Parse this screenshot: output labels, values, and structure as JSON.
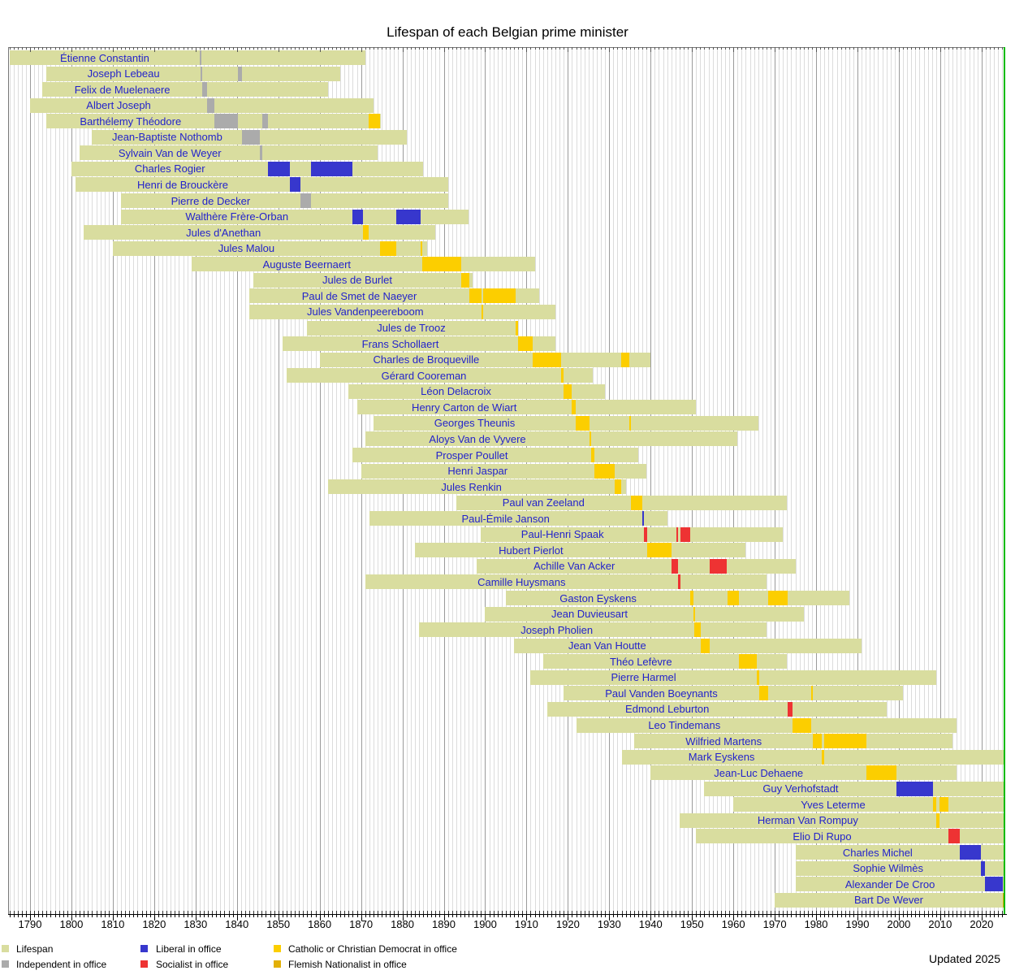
{
  "chart_data": {
    "type": "timeline",
    "title": "Lifespan of each Belgian prime minister",
    "updated": "Updated 2025",
    "x_axis": {
      "start_year": 1790,
      "end_year": 2020,
      "major_interval": 10,
      "minor_interval": 1
    },
    "x_ticks": [
      1790,
      1800,
      1810,
      1820,
      1830,
      1840,
      1850,
      1860,
      1870,
      1880,
      1890,
      1900,
      1910,
      1920,
      1930,
      1940,
      1950,
      1960,
      1970,
      1980,
      1990,
      2000,
      2010,
      2020
    ],
    "now_year": 2025.35,
    "colors": {
      "lifespan": "#d9dd9f",
      "independent": "#ababab",
      "liberal": "#3737cd",
      "socialist": "#ee3333",
      "catholic": "#fcce00",
      "flemish": "#e2b007",
      "now_line": "#00bb00",
      "grid_minor": "#dcdcdc",
      "grid_major": "#9a9a9a",
      "frame": "#777777",
      "name_text": "#2323cb"
    },
    "legend": [
      {
        "key": "lifespan",
        "label": "Lifespan"
      },
      {
        "key": "independent",
        "label": "Independent in office"
      },
      {
        "key": "liberal",
        "label": "Liberal in office"
      },
      {
        "key": "socialist",
        "label": "Socialist in office"
      },
      {
        "key": "catholic",
        "label": "Catholic or Christian Democrat in office"
      },
      {
        "key": "flemish",
        "label": "Flemish Nationalist in office"
      }
    ],
    "ministers": [
      {
        "name": "Étienne Constantin",
        "born": 1785,
        "died": 1871,
        "terms": [
          {
            "start": 1831.1,
            "end": 1831.5,
            "party": "independent"
          }
        ]
      },
      {
        "name": "Joseph Lebeau",
        "born": 1794,
        "died": 1865,
        "terms": [
          {
            "start": 1831.2,
            "end": 1831.6,
            "party": "independent"
          },
          {
            "start": 1840.3,
            "end": 1841.3,
            "party": "independent"
          }
        ]
      },
      {
        "name": "Felix de Muelenaere",
        "born": 1793,
        "died": 1862,
        "terms": [
          {
            "start": 1831.6,
            "end": 1832.8,
            "party": "independent"
          }
        ]
      },
      {
        "name": "Albert Joseph",
        "born": 1790,
        "died": 1873,
        "terms": [
          {
            "start": 1832.8,
            "end": 1834.6,
            "party": "independent"
          }
        ]
      },
      {
        "name": "Barthélemy Théodore",
        "born": 1794,
        "died": 1874.7,
        "terms": [
          {
            "start": 1834.6,
            "end": 1840.3,
            "party": "independent"
          },
          {
            "start": 1846.2,
            "end": 1847.6,
            "party": "independent"
          },
          {
            "start": 1871.9,
            "end": 1874.6,
            "party": "catholic"
          }
        ]
      },
      {
        "name": "Jean-Baptiste Nothomb",
        "born": 1805,
        "died": 1881,
        "terms": [
          {
            "start": 1841.3,
            "end": 1845.6,
            "party": "independent"
          }
        ]
      },
      {
        "name": "Sylvain Van de Weyer",
        "born": 1802,
        "died": 1874,
        "terms": [
          {
            "start": 1845.6,
            "end": 1846.2,
            "party": "independent"
          }
        ]
      },
      {
        "name": "Charles Rogier",
        "born": 1800,
        "died": 1885,
        "terms": [
          {
            "start": 1847.6,
            "end": 1852.8,
            "party": "liberal"
          },
          {
            "start": 1857.9,
            "end": 1868.0,
            "party": "liberal"
          }
        ]
      },
      {
        "name": "Henri de Brouckère",
        "born": 1801,
        "died": 1891,
        "terms": [
          {
            "start": 1852.8,
            "end": 1855.3,
            "party": "liberal"
          }
        ]
      },
      {
        "name": "Pierre de Decker",
        "born": 1812,
        "died": 1891,
        "terms": [
          {
            "start": 1855.3,
            "end": 1857.9,
            "party": "independent"
          }
        ]
      },
      {
        "name": "Walthère Frère-Orban",
        "born": 1812,
        "died": 1896,
        "terms": [
          {
            "start": 1868.0,
            "end": 1870.5,
            "party": "liberal"
          },
          {
            "start": 1878.5,
            "end": 1884.5,
            "party": "liberal"
          }
        ]
      },
      {
        "name": "Jules d'Anethan",
        "born": 1803,
        "died": 1888,
        "terms": [
          {
            "start": 1870.5,
            "end": 1871.9,
            "party": "catholic"
          }
        ]
      },
      {
        "name": "Jules Malou",
        "born": 1810,
        "died": 1886,
        "terms": [
          {
            "start": 1874.6,
            "end": 1878.5,
            "party": "catholic"
          },
          {
            "start": 1884.45,
            "end": 1884.8,
            "party": "catholic"
          }
        ]
      },
      {
        "name": "Auguste Beernaert",
        "born": 1829,
        "died": 1912,
        "terms": [
          {
            "start": 1884.8,
            "end": 1894.2,
            "party": "catholic"
          }
        ]
      },
      {
        "name": "Jules de Burlet",
        "born": 1844,
        "died": 1897,
        "terms": [
          {
            "start": 1894.2,
            "end": 1896.2,
            "party": "catholic"
          }
        ]
      },
      {
        "name": "Paul de Smet de Naeyer",
        "born": 1843,
        "died": 1913,
        "terms": [
          {
            "start": 1896.2,
            "end": 1899.05,
            "party": "catholic"
          },
          {
            "start": 1899.6,
            "end": 1907.3,
            "party": "catholic"
          }
        ]
      },
      {
        "name": "Jules Vandenpeereboom",
        "born": 1843,
        "died": 1917,
        "terms": [
          {
            "start": 1899.05,
            "end": 1899.6,
            "party": "catholic"
          }
        ]
      },
      {
        "name": "Jules de Trooz",
        "born": 1857,
        "died": 1908,
        "terms": [
          {
            "start": 1907.3,
            "end": 1908.0,
            "party": "catholic"
          }
        ]
      },
      {
        "name": "Frans Schollaert",
        "born": 1851,
        "died": 1917,
        "terms": [
          {
            "start": 1908.0,
            "end": 1911.5,
            "party": "catholic"
          }
        ]
      },
      {
        "name": "Charles de Broqueville",
        "born": 1860,
        "died": 1940,
        "terms": [
          {
            "start": 1911.5,
            "end": 1918.4,
            "party": "catholic"
          },
          {
            "start": 1932.8,
            "end": 1934.9,
            "party": "catholic"
          }
        ]
      },
      {
        "name": "Gérard Cooreman",
        "born": 1852,
        "died": 1926,
        "terms": [
          {
            "start": 1918.4,
            "end": 1918.9,
            "party": "catholic"
          }
        ]
      },
      {
        "name": "Léon Delacroix",
        "born": 1867,
        "died": 1929,
        "terms": [
          {
            "start": 1918.9,
            "end": 1920.9,
            "party": "catholic"
          }
        ]
      },
      {
        "name": "Henry Carton de Wiart",
        "born": 1869,
        "died": 1951,
        "terms": [
          {
            "start": 1920.9,
            "end": 1921.9,
            "party": "catholic"
          }
        ]
      },
      {
        "name": "Georges Theunis",
        "born": 1873,
        "died": 1966,
        "terms": [
          {
            "start": 1921.9,
            "end": 1925.3,
            "party": "catholic"
          },
          {
            "start": 1934.9,
            "end": 1935.2,
            "party": "catholic"
          }
        ]
      },
      {
        "name": "Aloys Van de Vyvere",
        "born": 1871,
        "died": 1961,
        "terms": [
          {
            "start": 1925.3,
            "end": 1925.55,
            "party": "catholic"
          }
        ]
      },
      {
        "name": "Prosper Poullet",
        "born": 1868,
        "died": 1937,
        "terms": [
          {
            "start": 1925.55,
            "end": 1926.4,
            "party": "catholic"
          }
        ]
      },
      {
        "name": "Henri Jaspar",
        "born": 1870,
        "died": 1939,
        "terms": [
          {
            "start": 1926.4,
            "end": 1931.4,
            "party": "catholic"
          }
        ]
      },
      {
        "name": "Jules Renkin",
        "born": 1862,
        "died": 1934,
        "terms": [
          {
            "start": 1931.4,
            "end": 1932.8,
            "party": "catholic"
          }
        ]
      },
      {
        "name": "Paul van Zeeland",
        "born": 1893,
        "died": 1973,
        "terms": [
          {
            "start": 1935.2,
            "end": 1937.9,
            "party": "catholic"
          }
        ]
      },
      {
        "name": "Paul-Émile Janson",
        "born": 1872,
        "died": 1944,
        "terms": [
          {
            "start": 1937.9,
            "end": 1938.4,
            "party": "liberal"
          }
        ]
      },
      {
        "name": "Paul-Henri Spaak",
        "born": 1899,
        "died": 1972,
        "terms": [
          {
            "start": 1938.4,
            "end": 1939.15,
            "party": "socialist"
          },
          {
            "start": 1946.17,
            "end": 1946.32,
            "party": "socialist"
          },
          {
            "start": 1947.2,
            "end": 1949.6,
            "party": "socialist"
          }
        ]
      },
      {
        "name": "Hubert Pierlot",
        "born": 1883,
        "died": 1963,
        "terms": [
          {
            "start": 1939.15,
            "end": 1945.1,
            "party": "catholic"
          }
        ]
      },
      {
        "name": "Achille Van Acker",
        "born": 1898,
        "died": 1975,
        "terms": [
          {
            "start": 1945.1,
            "end": 1946.17,
            "party": "socialist"
          },
          {
            "start": 1946.32,
            "end": 1946.6,
            "party": "socialist"
          },
          {
            "start": 1954.3,
            "end": 1958.5,
            "party": "socialist"
          }
        ]
      },
      {
        "name": "Camille Huysmans",
        "born": 1871,
        "died": 1968,
        "terms": [
          {
            "start": 1946.6,
            "end": 1947.2,
            "party": "socialist"
          }
        ]
      },
      {
        "name": "Gaston Eyskens",
        "born": 1905,
        "died": 1988,
        "terms": [
          {
            "start": 1949.6,
            "end": 1950.45,
            "party": "catholic"
          },
          {
            "start": 1958.5,
            "end": 1961.3,
            "party": "catholic"
          },
          {
            "start": 1968.5,
            "end": 1973.04,
            "party": "catholic"
          }
        ]
      },
      {
        "name": "Jean Duvieusart",
        "born": 1900,
        "died": 1977,
        "terms": [
          {
            "start": 1950.45,
            "end": 1950.62,
            "party": "catholic"
          }
        ]
      },
      {
        "name": "Joseph Pholien",
        "born": 1884,
        "died": 1968,
        "terms": [
          {
            "start": 1950.62,
            "end": 1952.03,
            "party": "catholic"
          }
        ]
      },
      {
        "name": "Jean Van Houtte",
        "born": 1907,
        "died": 1991,
        "terms": [
          {
            "start": 1952.03,
            "end": 1954.3,
            "party": "catholic"
          }
        ]
      },
      {
        "name": "Théo Lefèvre",
        "born": 1914,
        "died": 1973,
        "terms": [
          {
            "start": 1961.3,
            "end": 1965.6,
            "party": "catholic"
          }
        ]
      },
      {
        "name": "Pierre Harmel",
        "born": 1911,
        "died": 2009,
        "terms": [
          {
            "start": 1965.6,
            "end": 1966.2,
            "party": "catholic"
          }
        ]
      },
      {
        "name": "Paul Vanden Boeynants",
        "born": 1919,
        "died": 2001,
        "terms": [
          {
            "start": 1966.2,
            "end": 1968.5,
            "party": "catholic"
          },
          {
            "start": 1978.8,
            "end": 1979.3,
            "party": "catholic"
          }
        ]
      },
      {
        "name": "Edmond Leburton",
        "born": 1915,
        "died": 1997,
        "terms": [
          {
            "start": 1973.04,
            "end": 1974.3,
            "party": "socialist"
          }
        ]
      },
      {
        "name": "Leo Tindemans",
        "born": 1922,
        "died": 2014,
        "terms": [
          {
            "start": 1974.3,
            "end": 1978.8,
            "party": "catholic"
          }
        ]
      },
      {
        "name": "Wilfried Martens",
        "born": 1936,
        "died": 2013,
        "terms": [
          {
            "start": 1979.3,
            "end": 1981.3,
            "party": "catholic"
          },
          {
            "start": 1981.95,
            "end": 1992.2,
            "party": "catholic"
          }
        ]
      },
      {
        "name": "Mark Eyskens",
        "born": 1933,
        "died": null,
        "terms": [
          {
            "start": 1981.3,
            "end": 1981.95,
            "party": "catholic"
          }
        ]
      },
      {
        "name": "Jean-Luc Dehaene",
        "born": 1940,
        "died": 2014,
        "terms": [
          {
            "start": 1992.2,
            "end": 1999.5,
            "party": "catholic"
          }
        ]
      },
      {
        "name": "Guy Verhofstadt",
        "born": 1953,
        "died": null,
        "terms": [
          {
            "start": 1999.5,
            "end": 2008.2,
            "party": "liberal"
          }
        ]
      },
      {
        "name": "Yves Leterme",
        "born": 1960,
        "died": null,
        "terms": [
          {
            "start": 2008.2,
            "end": 2009.0,
            "party": "catholic"
          },
          {
            "start": 2009.92,
            "end": 2011.92,
            "party": "catholic"
          }
        ]
      },
      {
        "name": "Herman Van Rompuy",
        "born": 1947,
        "died": null,
        "terms": [
          {
            "start": 2009.0,
            "end": 2009.92,
            "party": "catholic"
          }
        ]
      },
      {
        "name": "Elio Di Rupo",
        "born": 1951,
        "died": null,
        "terms": [
          {
            "start": 2011.92,
            "end": 2014.75,
            "party": "socialist"
          }
        ]
      },
      {
        "name": "Charles Michel",
        "born": 1975,
        "died": null,
        "terms": [
          {
            "start": 2014.75,
            "end": 2019.8,
            "party": "liberal"
          }
        ]
      },
      {
        "name": "Sophie Wilmès",
        "born": 1975,
        "died": null,
        "terms": [
          {
            "start": 2019.8,
            "end": 2020.75,
            "party": "liberal"
          }
        ]
      },
      {
        "name": "Alexander De Croo",
        "born": 1975,
        "died": null,
        "terms": [
          {
            "start": 2020.75,
            "end": 2025.1,
            "party": "liberal"
          }
        ]
      },
      {
        "name": "Bart De Wever",
        "born": 1970,
        "died": null,
        "terms": [
          {
            "start": 2025.1,
            "end": 2025.45,
            "party": "flemish"
          }
        ]
      }
    ]
  }
}
